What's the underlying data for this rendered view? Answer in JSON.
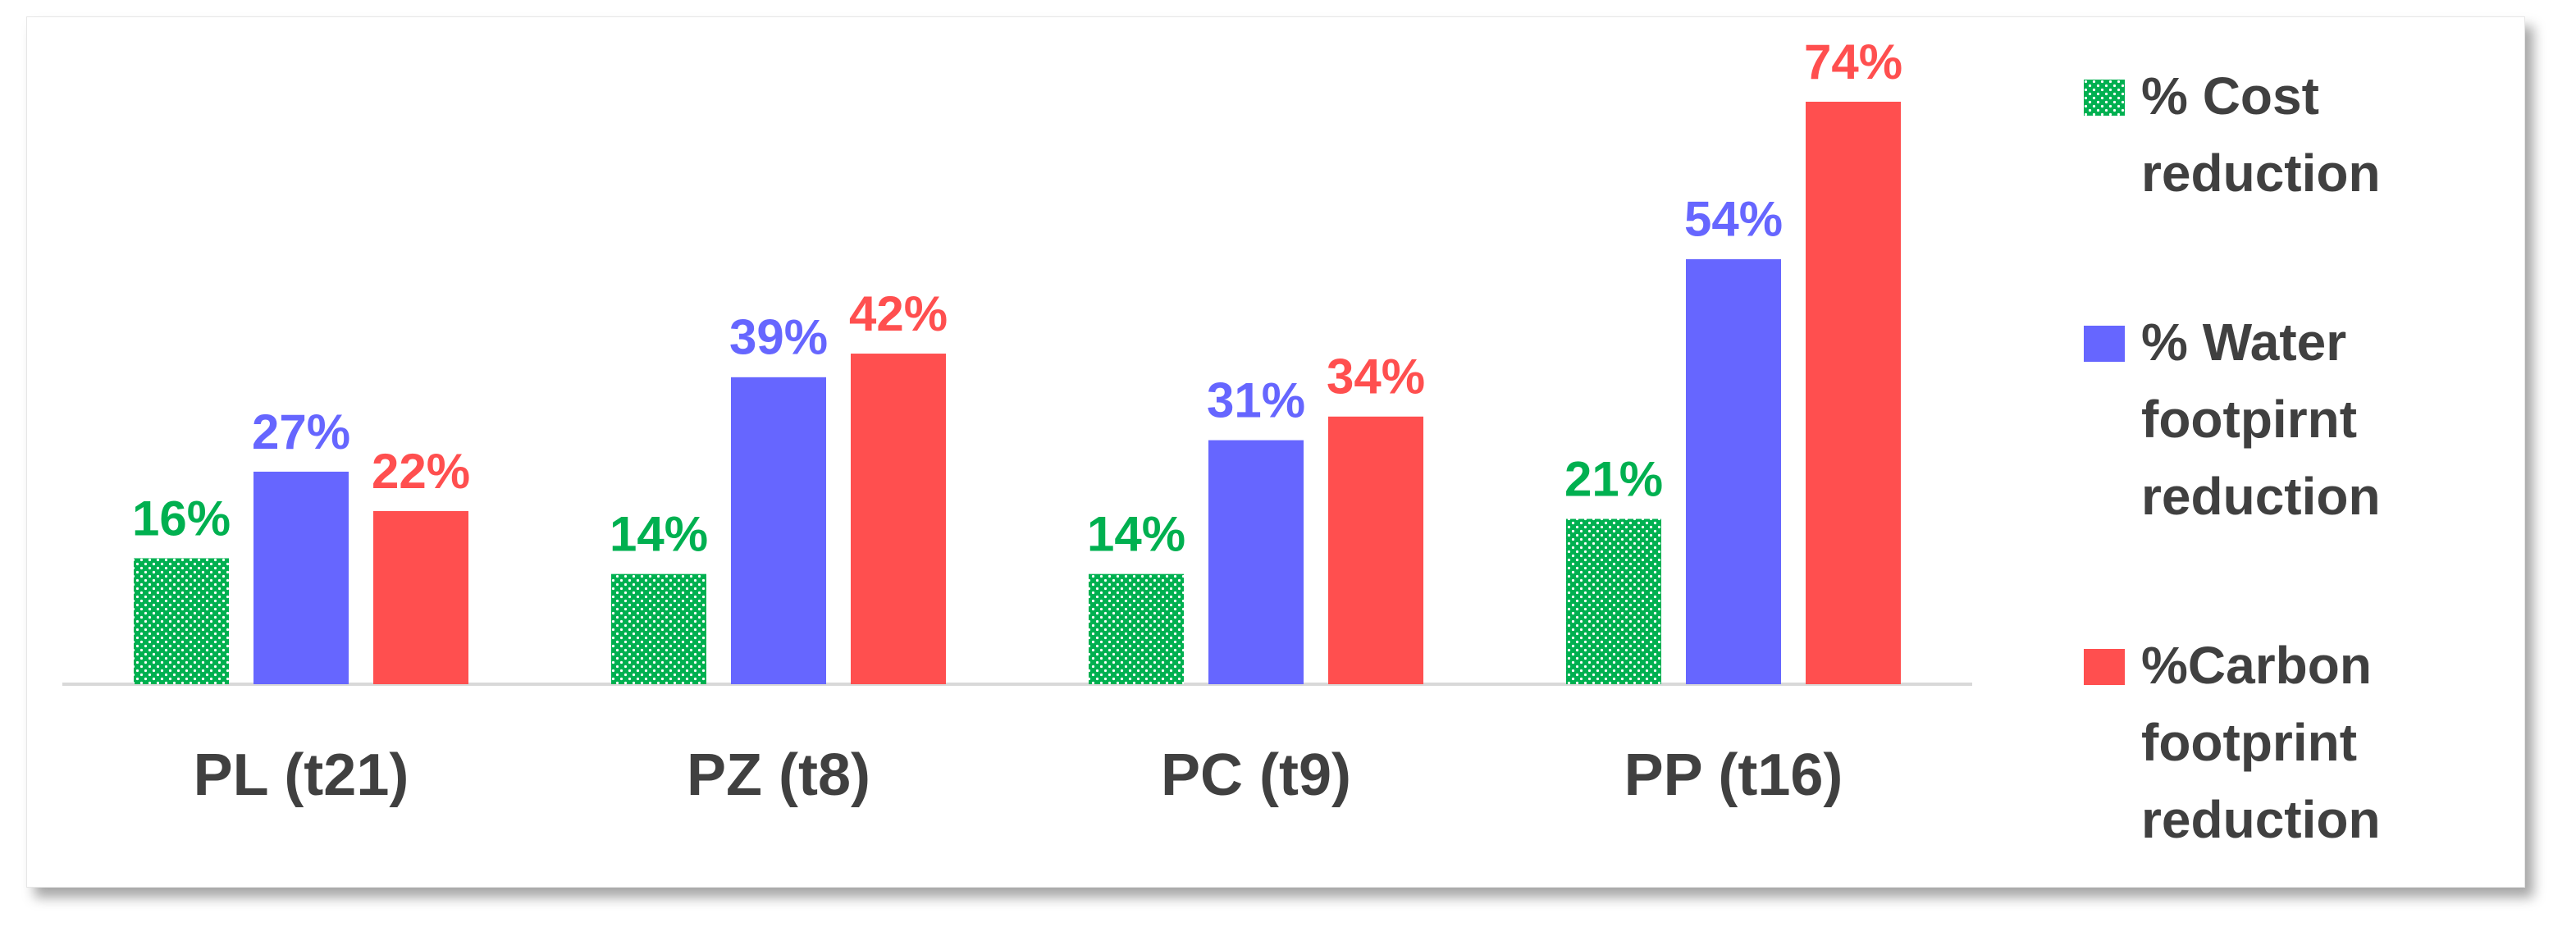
{
  "chart_data": {
    "type": "bar",
    "categories": [
      "PL (t21)",
      "PZ (t8)",
      "PC (t9)",
      "PP (t16)"
    ],
    "series": [
      {
        "name": "% Cost reduction",
        "color": "#00b050",
        "pattern": "dots",
        "values": [
          16,
          14,
          14,
          21
        ],
        "value_labels": [
          "16%",
          "14%",
          "14%",
          "21%"
        ]
      },
      {
        "name": "% Water footpirnt reduction",
        "color": "#6666ff",
        "values": [
          27,
          39,
          31,
          54
        ],
        "value_labels": [
          "27%",
          "39%",
          "31%",
          "54%"
        ]
      },
      {
        "name": "%Carbon footprint reduction",
        "color": "#ff4f4f",
        "values": [
          22,
          42,
          34,
          74
        ],
        "value_labels": [
          "22%",
          "42%",
          "34%",
          "74%"
        ]
      }
    ]
  }
}
